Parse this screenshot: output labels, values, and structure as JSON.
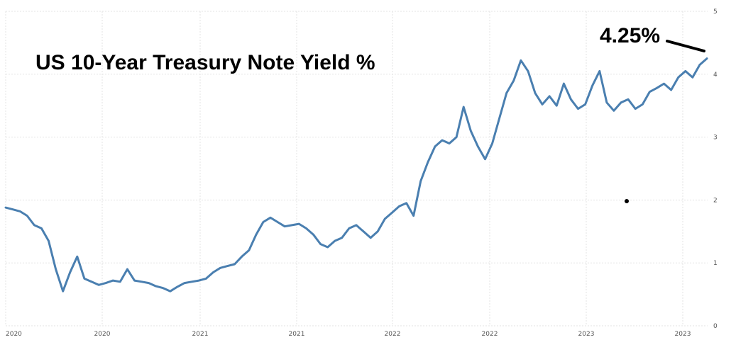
{
  "chart_data": {
    "type": "line",
    "title": "US 10-Year Treasury Note Yield %",
    "annotation": "4.25%",
    "xlabel": "",
    "ylabel": "",
    "ylim": [
      0,
      5
    ],
    "grid": true,
    "line_color": "#4a7fb0",
    "x_tick_labels": [
      "2020",
      "2020",
      "2021",
      "2021",
      "2022",
      "2022",
      "2023",
      "2023"
    ],
    "y_tick_labels": [
      "0",
      "1",
      "2",
      "3",
      "4",
      "5"
    ],
    "series": [
      {
        "values": [
          1.88,
          1.85,
          1.82,
          1.75,
          1.6,
          1.55,
          1.35,
          0.9,
          0.55,
          0.85,
          1.1,
          0.75,
          0.7,
          0.65,
          0.68,
          0.72,
          0.7,
          0.9,
          0.72,
          0.7,
          0.68,
          0.63,
          0.6,
          0.55,
          0.62,
          0.68,
          0.7,
          0.72,
          0.75,
          0.85,
          0.92,
          0.95,
          0.98,
          1.1,
          1.2,
          1.45,
          1.65,
          1.72,
          1.65,
          1.58,
          1.6,
          1.62,
          1.55,
          1.45,
          1.3,
          1.25,
          1.35,
          1.4,
          1.55,
          1.6,
          1.5,
          1.4,
          1.5,
          1.7,
          1.8,
          1.9,
          1.95,
          1.75,
          2.3,
          2.6,
          2.85,
          2.95,
          2.9,
          3.0,
          3.48,
          3.1,
          2.85,
          2.65,
          2.9,
          3.3,
          3.7,
          3.9,
          4.22,
          4.05,
          3.7,
          3.52,
          3.65,
          3.5,
          3.85,
          3.6,
          3.45,
          3.52,
          3.82,
          4.05,
          3.55,
          3.42,
          3.55,
          3.6,
          3.45,
          3.52,
          3.72,
          3.78,
          3.85,
          3.75,
          3.95,
          4.05,
          3.95,
          4.15,
          4.25
        ]
      }
    ]
  }
}
